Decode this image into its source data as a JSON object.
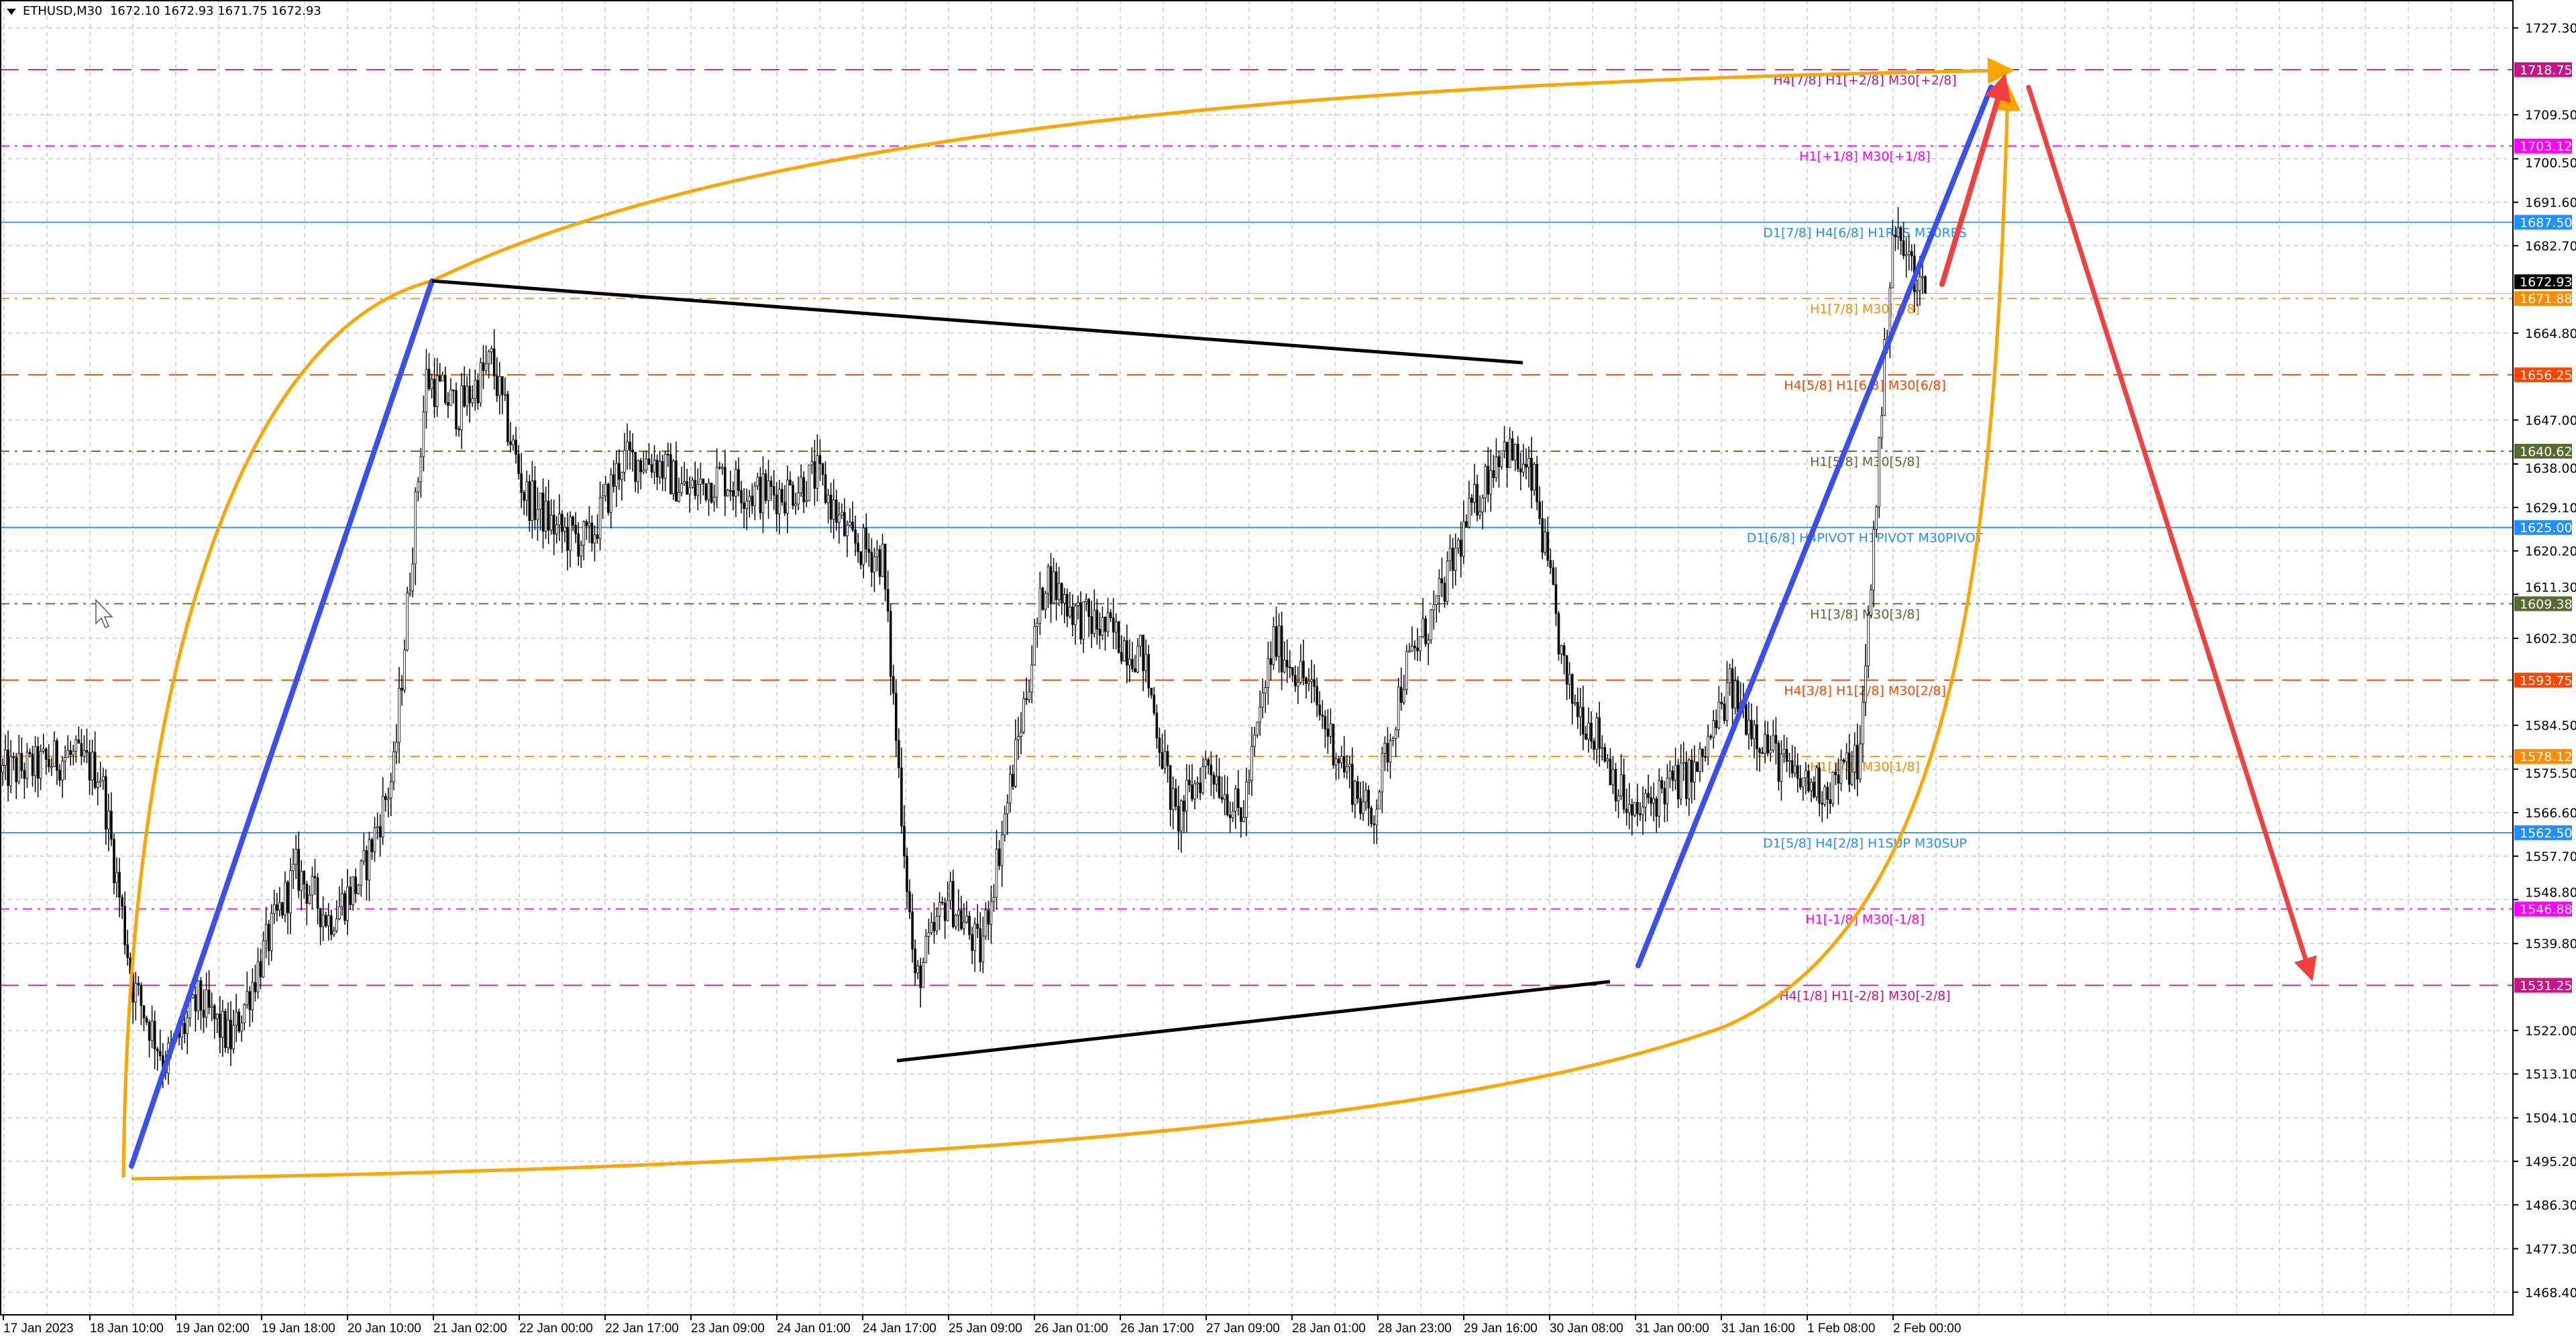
{
  "header": {
    "symbol": "ETHUSD,M30",
    "ohlc": "1672.10 1672.93 1671.75 1672.93"
  },
  "chart_data": {
    "type": "candlestick",
    "symbol": "ETHUSD",
    "timeframe": "M30",
    "current_price": 1672.93,
    "ylim": [
      1464,
      1731
    ],
    "grid": true,
    "price_ticks": [
      1727.3,
      1709.5,
      1700.5,
      1691.6,
      1682.7,
      1664.8,
      1647.0,
      1638.0,
      1629.1,
      1620.2,
      1611.3,
      1602.3,
      1584.5,
      1575.5,
      1566.6,
      1557.7,
      1548.8,
      1539.8,
      1522.0,
      1513.1,
      1504.1,
      1495.2,
      1486.3,
      1477.3,
      1468.4
    ],
    "price_tick_labels": [
      "1727.30",
      "1709.50",
      "1700.50",
      "1691.60",
      "1682.70",
      "1664.80",
      "1647.00",
      "1638.00",
      "1629.10",
      "1620.20",
      "1611.30",
      "1602.30",
      "1584.50",
      "1575.50",
      "1566.60",
      "1557.70",
      "1548.80",
      "1539.80",
      "1522.00",
      "1513.10",
      "1504.10",
      "1495.20",
      "1486.30",
      "1477.30",
      "1468.40"
    ],
    "time_labels": [
      "17 Jan 2023",
      "18 Jan 10:00",
      "19 Jan 02:00",
      "19 Jan 18:00",
      "20 Jan 10:00",
      "21 Jan 02:00",
      "22 Jan 00:00",
      "22 Jan 17:00",
      "23 Jan 09:00",
      "24 Jan 01:00",
      "24 Jan 17:00",
      "25 Jan 09:00",
      "26 Jan 01:00",
      "26 Jan 17:00",
      "27 Jan 09:00",
      "28 Jan 01:00",
      "28 Jan 23:00",
      "29 Jan 16:00",
      "30 Jan 08:00",
      "31 Jan 00:00",
      "31 Jan 16:00",
      "1 Feb 08:00",
      "2 Feb 00:00"
    ],
    "approx_close_path_6h": [
      1574.9,
      1575.9,
      1578.3,
      1574.9,
      1531.2,
      1515.5,
      1527.9,
      1519.8,
      1537.9,
      1554.8,
      1544.7,
      1553.1,
      1574.9,
      1655.6,
      1648.9,
      1659.0,
      1632.1,
      1624.4,
      1622.0,
      1638.8,
      1638.8,
      1632.1,
      1635.5,
      1632.1,
      1632.1,
      1635.5,
      1622.0,
      1618.7,
      1531.2,
      1549.7,
      1537.9,
      1574.9,
      1615.3,
      1606.9,
      1603.5,
      1598.5,
      1564.9,
      1577.3,
      1564.9,
      1601.8,
      1593.4,
      1578.3,
      1564.9,
      1595.1,
      1608.6,
      1627.1,
      1642.2,
      1633.8,
      1591.8,
      1581.7,
      1564.9,
      1571.6,
      1574.9,
      1591.8,
      1581.7,
      1573.3,
      1571.6,
      1578.3,
      1685.9,
      1672.9
    ],
    "levels": [
      {
        "price": 1718.75,
        "badge": "1718.75",
        "label": "H4[7/8] H1[+2/8] M30[+2/8]",
        "color": "#c71585",
        "dash": "28 14"
      },
      {
        "price": 1703.12,
        "badge": "1703.12",
        "label": "H1[+1/8] M30[+1/8]",
        "color": "#ff00ff",
        "dash": "14 8 4 8"
      },
      {
        "price": 1687.5,
        "badge": "1687.50",
        "label": "D1[7/8] H4[6/8] H1RES M30RES",
        "color": "#1e90ff",
        "dash": ""
      },
      {
        "price": 1671.88,
        "badge": "1671.88",
        "label": "H1[7/8] M30[7/8]",
        "color": "#ff8c00",
        "dash": "14 8 4 8"
      },
      {
        "price": 1656.25,
        "badge": "1656.25",
        "label": "H4[5/8] H1[6/8] M30[6/8]",
        "color": "#ff4500",
        "dash": "28 14"
      },
      {
        "price": 1640.62,
        "badge": "1640.62",
        "label": "H1[5/8] M30[5/8]",
        "color": "#556b2f",
        "dash": "14 8 4 8"
      },
      {
        "price": 1625.0,
        "badge": "1625.00",
        "label": "D1[6/8] H4PIVOT H1PIVOT M30PIVOT",
        "color": "#1e90ff",
        "dash": ""
      },
      {
        "price": 1609.38,
        "badge": "1609.38",
        "label": "H1[3/8] M30[3/8]",
        "color": "#556b2f",
        "dash": "14 8 4 8"
      },
      {
        "price": 1593.75,
        "badge": "1593.75",
        "label": "H4[3/8] H1[2/8] M30[2/8]",
        "color": "#ff4500",
        "dash": "28 14"
      },
      {
        "price": 1578.12,
        "badge": "1578.12",
        "label": "H1[1/8] M30[1/8]",
        "color": "#ff8c00",
        "dash": "14 8 4 8"
      },
      {
        "price": 1562.5,
        "badge": "1562.50",
        "label": "D1[5/8] H4[2/8] H1SUP M30SUP",
        "color": "#1e90ff",
        "dash": ""
      },
      {
        "price": 1546.88,
        "badge": "1546.88",
        "label": "H1[-1/8] M30[-1/8]",
        "color": "#ff00ff",
        "dash": "14 8 4 8"
      },
      {
        "price": 1531.25,
        "badge": "1531.25",
        "label": "H4[1/8] H1[-2/8] M30[-2/8]",
        "color": "#c71585",
        "dash": "28 14"
      }
    ],
    "current_price_badge": "1672.93",
    "drawing_colors": {
      "trend_up": "#3b4ef0",
      "triangle": "#000000",
      "arc": "#ffa500",
      "forecast": "#f23f3f"
    }
  },
  "icons": {
    "menu": "triangle-down-icon",
    "cursor": "mouse-pointer-icon"
  }
}
